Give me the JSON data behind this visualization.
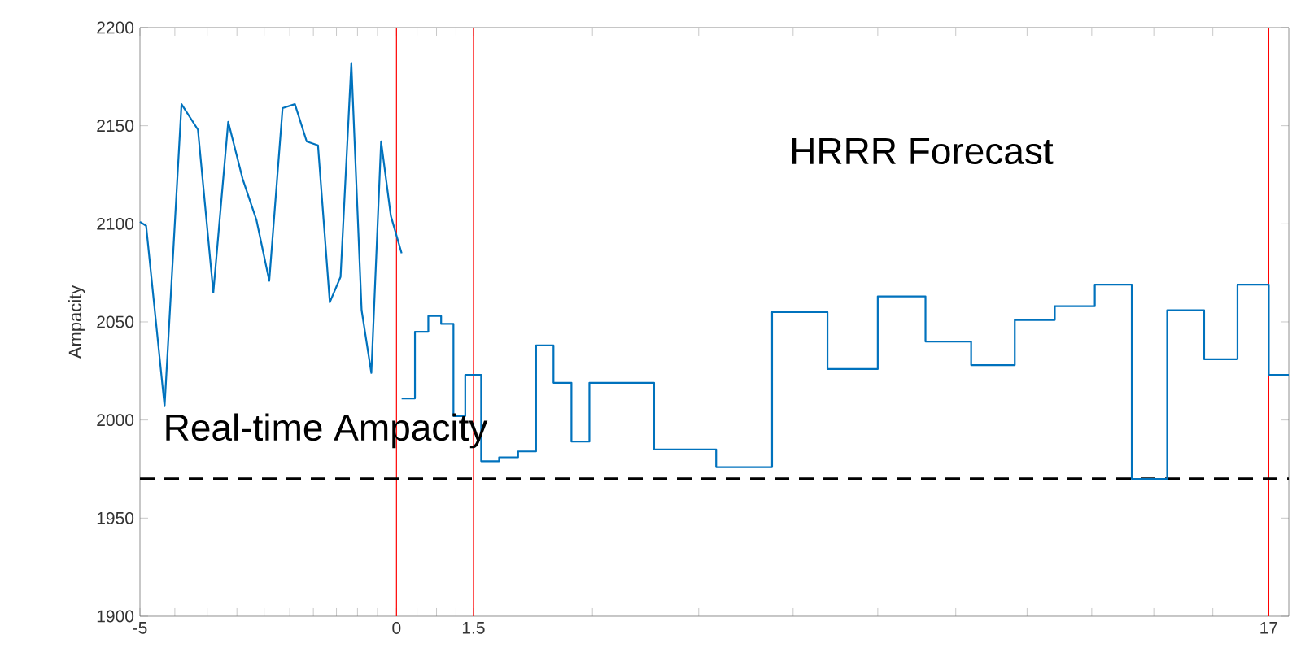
{
  "chart_data": {
    "type": "line",
    "ylabel": "Ampacity",
    "xlim": [
      -5,
      17.39
    ],
    "ylim": [
      1900,
      2200
    ],
    "xticks": [
      -5,
      {
        "value": -4.32,
        "label": null
      },
      {
        "value": -3.69,
        "label": null
      },
      {
        "value": -3.11,
        "label": null
      },
      {
        "value": -2.58,
        "label": null
      },
      {
        "value": -2.08,
        "label": null
      },
      {
        "value": -1.62,
        "label": null
      },
      {
        "value": -1.17,
        "label": null
      },
      {
        "value": -0.76,
        "label": null
      },
      {
        "value": -0.37,
        "label": null
      },
      0,
      {
        "value": 0.4,
        "label": null
      },
      {
        "value": 0.78,
        "label": null
      },
      {
        "value": 1.16,
        "label": null
      },
      1.5,
      {
        "value": 3.82,
        "label": null
      },
      {
        "value": 5.89,
        "label": null
      },
      {
        "value": 7.73,
        "label": null
      },
      {
        "value": 9.38,
        "label": null
      },
      {
        "value": 10.9,
        "label": null
      },
      {
        "value": 12.29,
        "label": null
      },
      {
        "value": 13.55,
        "label": null
      },
      {
        "value": 14.76,
        "label": null
      },
      {
        "value": 15.91,
        "label": null
      },
      17
    ],
    "yticks": [
      1900,
      1950,
      2000,
      2050,
      2100,
      2150,
      2200
    ],
    "series": [
      {
        "color": "#0072bd",
        "x": [
          -5,
          -4.88,
          -4.52,
          -4.19,
          -3.87,
          -3.57,
          -3.28,
          -3.0,
          -2.73,
          -2.48,
          -2.22,
          -1.98,
          -1.75,
          -1.53,
          -1.3,
          -1.09,
          -0.88,
          -0.68,
          -0.49,
          -0.3,
          -0.11,
          0.1
        ],
        "values": [
          2101,
          2099,
          2007,
          2161,
          2148,
          2065,
          2152,
          2123,
          2102,
          2071,
          2159,
          2161,
          2142,
          2140,
          2060,
          2073,
          2182,
          2056,
          2024,
          2142,
          2104,
          2085
        ]
      },
      {
        "type": "step",
        "color": "#0072bd",
        "x": [
          0.1,
          0.36,
          0.62,
          0.87,
          1.11,
          1.34,
          1.65,
          2.0,
          2.37,
          2.72,
          3.06,
          3.41,
          3.76,
          5.02,
          6.23,
          7.32,
          8.4,
          9.38,
          10.31,
          11.2,
          12.05,
          12.83,
          13.61,
          14.33,
          15.02,
          15.74,
          16.39,
          17,
          17.39
        ],
        "values": [
          2011,
          2045,
          2053,
          2049,
          2002,
          2023,
          1979,
          1981,
          1984,
          2038,
          2019,
          1989,
          2019,
          1985,
          1976,
          2055,
          2026,
          2063,
          2040,
          2028,
          2051,
          2058,
          2069,
          1970,
          2056,
          2031,
          2069,
          2023,
          2023
        ]
      }
    ],
    "ref_lines": [
      {
        "axis": "x",
        "value": 0,
        "color": "#ff0000"
      },
      {
        "axis": "x",
        "value": 1.5,
        "color": "#ff0000"
      },
      {
        "axis": "x",
        "value": 17,
        "color": "#ff0000"
      },
      {
        "axis": "y",
        "value": 1970,
        "color": "#000000",
        "line_style": "dashed"
      }
    ],
    "annotations": [
      "HRRR Forecast",
      "Real-time Ampacity"
    ],
    "marker": "none"
  }
}
